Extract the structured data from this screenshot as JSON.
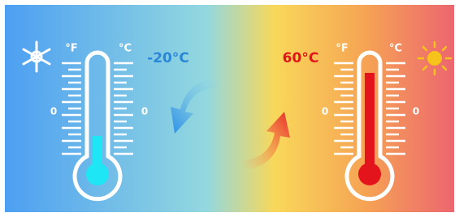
{
  "left_thermometer": {
    "units": [
      "°F",
      "°C"
    ],
    "zero_labels": [
      "0",
      "0"
    ],
    "reading": "-20°C"
  },
  "right_thermometer": {
    "units": [
      "°F",
      "°C"
    ],
    "zero_labels": [
      "0",
      "0"
    ],
    "reading": "60°C"
  }
}
